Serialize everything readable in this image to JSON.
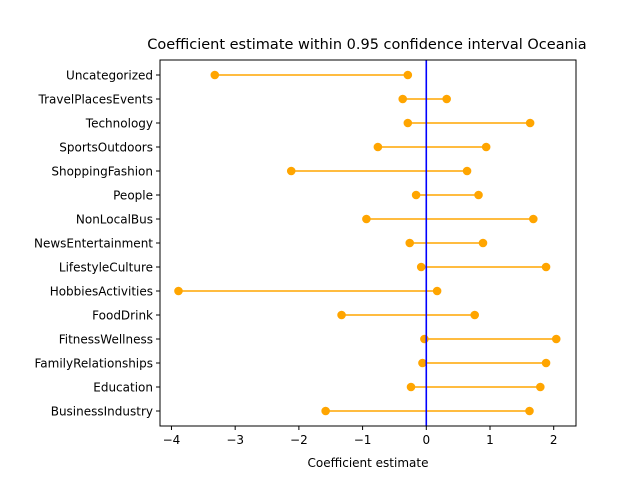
{
  "chart_data": {
    "type": "interval",
    "title": "Coefficient estimate within 0.95 confidence interval Oceania",
    "xlabel": "Coefficient estimate",
    "ylabel": "",
    "xlim": [
      -4.18,
      2.35
    ],
    "xticks": [
      -4,
      -3,
      -2,
      -1,
      0,
      1,
      2
    ],
    "xtick_labels": [
      "−4",
      "−3",
      "−2",
      "−1",
      "0",
      "1",
      "2"
    ],
    "reference_line_x": 0,
    "grid": false,
    "colors": {
      "interval": "#FFA500",
      "reference": "#0000FF"
    },
    "categories": [
      "Uncategorized",
      "TravelPlacesEvents",
      "Technology",
      "SportsOutdoors",
      "ShoppingFashion",
      "People",
      "NonLocalBus",
      "NewsEntertainment",
      "LifestyleCulture",
      "HobbiesActivities",
      "FoodDrink",
      "FitnessWellness",
      "FamilyRelationships",
      "Education",
      "BusinessIndustry"
    ],
    "lower": [
      -3.32,
      -0.37,
      -0.29,
      -0.76,
      -2.12,
      -0.16,
      -0.94,
      -0.26,
      -0.08,
      -3.89,
      -1.33,
      -0.03,
      -0.06,
      -0.24,
      -1.58
    ],
    "upper": [
      -0.29,
      0.32,
      1.63,
      0.94,
      0.64,
      0.82,
      1.68,
      0.89,
      1.88,
      0.17,
      0.76,
      2.04,
      1.88,
      1.79,
      1.62
    ]
  }
}
